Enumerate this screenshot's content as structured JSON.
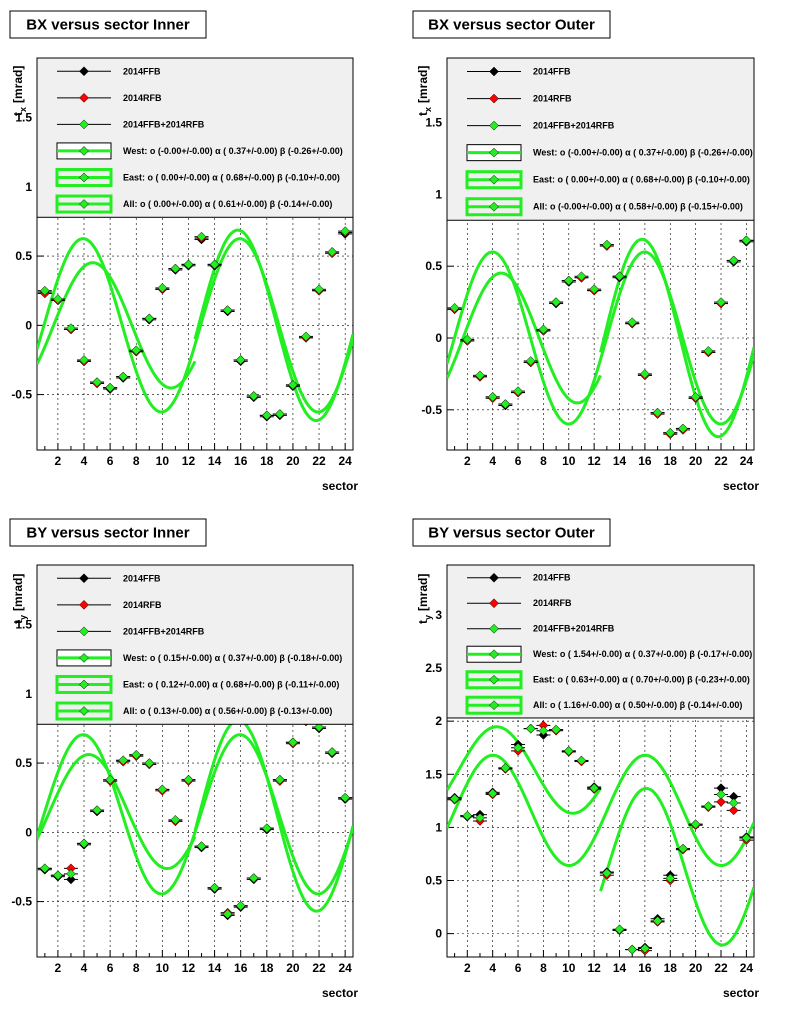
{
  "chart_data": [
    {
      "type": "scatter",
      "title": "BX versus  sector Inner",
      "xlabel": "sector",
      "ylabel": "t",
      "ylabel_sub": "x",
      "ylabel_unit": "[mrad]",
      "xlim": [
        0.4,
        24.6
      ],
      "ylim": [
        -0.9,
        1.93
      ],
      "xticks": [
        2,
        4,
        6,
        8,
        10,
        12,
        14,
        16,
        18,
        20,
        22,
        24
      ],
      "yticks": [
        -0.5,
        0,
        0.5,
        1,
        1.5
      ],
      "ytick_labels": [
        "-0.5",
        "0",
        "0.5",
        "1",
        "1.5"
      ],
      "legend_bottom": 0.78,
      "legend": [
        {
          "label": "2014FFB",
          "kind": "marker",
          "color": "#000000"
        },
        {
          "label": "2014RFB",
          "kind": "marker",
          "color": "#ff0000"
        },
        {
          "label": "2014FFB+2014RFB",
          "kind": "marker",
          "color": "#22ee22"
        },
        {
          "label": "West: o (-0.00+/-0.00) α ( 0.37+/-0.00) β (-0.26+/-0.00)",
          "kind": "fit"
        },
        {
          "label": "East: o ( 0.00+/-0.00) α ( 0.68+/-0.00) β (-0.10+/-0.00)",
          "kind": "fit"
        },
        {
          "label": "All: o ( 0.00+/-0.00) α ( 0.61+/-0.00) β (-0.14+/-0.00)",
          "kind": "fit"
        }
      ],
      "fits": [
        {
          "o": 0.0,
          "a": 0.37,
          "b": -0.26,
          "xmin": 0.4,
          "xmax": 12.5
        },
        {
          "o": 0.0,
          "a": 0.68,
          "b": -0.1,
          "xmin": 12.5,
          "xmax": 24.6
        },
        {
          "o": 0.0,
          "a": 0.61,
          "b": -0.14,
          "xmin": 0.4,
          "xmax": 24.6
        }
      ],
      "sectors": [
        1,
        2,
        3,
        4,
        5,
        6,
        7,
        8,
        9,
        10,
        11,
        12,
        13,
        14,
        15,
        16,
        17,
        18,
        19,
        20,
        21,
        22,
        23,
        24
      ],
      "y_ffb": [
        0.24,
        0.18,
        -0.03,
        -0.26,
        -0.41,
        -0.46,
        -0.38,
        -0.19,
        0.04,
        0.26,
        0.4,
        0.43,
        0.62,
        0.43,
        0.1,
        -0.26,
        -0.52,
        -0.66,
        -0.65,
        -0.44,
        -0.09,
        0.25,
        0.53,
        0.66
      ],
      "y_rfb": [
        0.23,
        0.18,
        -0.03,
        -0.26,
        -0.42,
        -0.45,
        -0.37,
        -0.19,
        0.05,
        0.26,
        0.41,
        0.44,
        0.63,
        0.44,
        0.11,
        -0.25,
        -0.51,
        -0.65,
        -0.64,
        -0.43,
        -0.09,
        0.25,
        0.52,
        0.67
      ],
      "y_all": [
        0.25,
        0.19,
        -0.02,
        -0.25,
        -0.41,
        -0.45,
        -0.37,
        -0.18,
        0.05,
        0.27,
        0.41,
        0.44,
        0.64,
        0.44,
        0.11,
        -0.25,
        -0.51,
        -0.65,
        -0.64,
        -0.43,
        -0.08,
        0.26,
        0.53,
        0.68
      ]
    },
    {
      "type": "scatter",
      "title": "BX versus  sector Outer",
      "xlabel": "sector",
      "ylabel": "t",
      "ylabel_sub": "x",
      "ylabel_unit": "[mrad]",
      "xlim": [
        0.4,
        24.6
      ],
      "ylim": [
        -0.78,
        1.95
      ],
      "xticks": [
        2,
        4,
        6,
        8,
        10,
        12,
        14,
        16,
        18,
        20,
        22,
        24
      ],
      "yticks": [
        -0.5,
        0,
        0.5,
        1,
        1.5
      ],
      "ytick_labels": [
        "-0.5",
        "0",
        "0.5",
        "1",
        "1.5"
      ],
      "legend_bottom": 0.82,
      "legend": [
        {
          "label": "2014FFB",
          "kind": "marker",
          "color": "#000000"
        },
        {
          "label": "2014RFB",
          "kind": "marker",
          "color": "#ff0000"
        },
        {
          "label": "2014FFB+2014RFB",
          "kind": "marker",
          "color": "#22ee22"
        },
        {
          "label": "West: o (-0.00+/-0.00) α ( 0.37+/-0.00) β (-0.26+/-0.00)",
          "kind": "fit"
        },
        {
          "label": "East: o ( 0.00+/-0.00) α ( 0.68+/-0.00) β (-0.10+/-0.00)",
          "kind": "fit"
        },
        {
          "label": "All: o (-0.00+/-0.00) α ( 0.58+/-0.00) β (-0.15+/-0.00)",
          "kind": "fit"
        }
      ],
      "fits": [
        {
          "o": 0.0,
          "a": 0.37,
          "b": -0.26,
          "xmin": 0.4,
          "xmax": 12.5
        },
        {
          "o": 0.0,
          "a": 0.68,
          "b": -0.1,
          "xmin": 12.5,
          "xmax": 24.6
        },
        {
          "o": 0.0,
          "a": 0.58,
          "b": -0.15,
          "xmin": 0.4,
          "xmax": 24.6
        }
      ],
      "sectors": [
        1,
        2,
        3,
        4,
        5,
        6,
        7,
        8,
        9,
        10,
        11,
        12,
        13,
        14,
        15,
        16,
        17,
        18,
        19,
        20,
        21,
        22,
        23,
        24
      ],
      "y_ffb": [
        0.2,
        -0.02,
        -0.27,
        -0.41,
        -0.47,
        -0.38,
        -0.17,
        0.05,
        0.24,
        0.39,
        0.42,
        0.33,
        0.65,
        0.42,
        0.1,
        -0.26,
        -0.52,
        -0.66,
        -0.63,
        -0.42,
        -0.1,
        0.24,
        0.53,
        0.67
      ],
      "y_rfb": [
        0.2,
        -0.02,
        -0.27,
        -0.42,
        -0.46,
        -0.38,
        -0.17,
        0.05,
        0.25,
        0.4,
        0.42,
        0.33,
        0.64,
        0.43,
        0.1,
        -0.26,
        -0.53,
        -0.67,
        -0.64,
        -0.42,
        -0.1,
        0.24,
        0.54,
        0.68
      ],
      "y_all": [
        0.21,
        -0.01,
        -0.26,
        -0.41,
        -0.46,
        -0.37,
        -0.16,
        0.06,
        0.25,
        0.4,
        0.43,
        0.34,
        0.65,
        0.43,
        0.11,
        -0.25,
        -0.52,
        -0.66,
        -0.63,
        -0.41,
        -0.09,
        0.25,
        0.54,
        0.68
      ]
    },
    {
      "type": "scatter",
      "title": "BY versus  sector Inner",
      "xlabel": "sector",
      "ylabel": "t",
      "ylabel_sub": "y",
      "ylabel_unit": "[mrad]",
      "xlim": [
        0.4,
        24.6
      ],
      "ylim": [
        -0.9,
        1.93
      ],
      "xticks": [
        2,
        4,
        6,
        8,
        10,
        12,
        14,
        16,
        18,
        20,
        22,
        24
      ],
      "yticks": [
        -0.5,
        0,
        0.5,
        1,
        1.5
      ],
      "ytick_labels": [
        "-0.5",
        "0",
        "0.5",
        "1",
        "1.5"
      ],
      "legend_bottom": 0.78,
      "legend": [
        {
          "label": "2014FFB",
          "kind": "marker",
          "color": "#000000"
        },
        {
          "label": "2014RFB",
          "kind": "marker",
          "color": "#ff0000"
        },
        {
          "label": "2014FFB+2014RFB",
          "kind": "marker",
          "color": "#22ee22"
        },
        {
          "label": "West: o ( 0.15+/-0.00) α ( 0.37+/-0.00) β (-0.18+/-0.00)",
          "kind": "fit"
        },
        {
          "label": "East: o ( 0.12+/-0.00) α ( 0.68+/-0.00) β (-0.11+/-0.00)",
          "kind": "fit"
        },
        {
          "label": "All: o ( 0.13+/-0.00) α ( 0.56+/-0.00) β (-0.13+/-0.00)",
          "kind": "fit"
        }
      ],
      "fits": [
        {
          "o": 0.15,
          "a": 0.37,
          "b": -0.18,
          "xmin": 0.4,
          "xmax": 12.5
        },
        {
          "o": 0.12,
          "a": 0.68,
          "b": -0.11,
          "xmin": 12.5,
          "xmax": 24.6
        },
        {
          "o": 0.13,
          "a": 0.56,
          "b": -0.13,
          "xmin": 0.4,
          "xmax": 24.6
        }
      ],
      "sectors": [
        1,
        2,
        3,
        4,
        5,
        6,
        7,
        8,
        9,
        10,
        11,
        12,
        13,
        14,
        15,
        16,
        17,
        18,
        19,
        20,
        21,
        22,
        23,
        24
      ],
      "y_ffb": [
        -0.27,
        -0.32,
        -0.34,
        -0.09,
        0.15,
        0.37,
        0.52,
        0.56,
        0.5,
        0.31,
        0.08,
        0.38,
        -0.11,
        -0.41,
        -0.6,
        -0.54,
        -0.34,
        0.02,
        0.38,
        0.65,
        0.81,
        0.75,
        0.57,
        0.24
      ],
      "y_rfb": [
        -0.26,
        -0.31,
        -0.26,
        -0.08,
        0.16,
        0.37,
        0.51,
        0.55,
        0.49,
        0.3,
        0.08,
        0.37,
        -0.1,
        -0.4,
        -0.58,
        -0.53,
        -0.33,
        0.03,
        0.37,
        0.64,
        0.8,
        0.76,
        0.58,
        0.25
      ],
      "y_all": [
        -0.26,
        -0.31,
        -0.3,
        -0.08,
        0.16,
        0.38,
        0.52,
        0.56,
        0.5,
        0.31,
        0.09,
        0.38,
        -0.1,
        -0.4,
        -0.59,
        -0.53,
        -0.33,
        0.03,
        0.38,
        0.65,
        0.81,
        0.76,
        0.58,
        0.25
      ]
    },
    {
      "type": "scatter",
      "title": "BY versus  sector Outer",
      "xlabel": "sector",
      "ylabel": "t",
      "ylabel_sub": "y",
      "ylabel_unit": "[mrad]",
      "xlim": [
        0.4,
        24.6
      ],
      "ylim": [
        -0.22,
        3.47
      ],
      "xticks": [
        2,
        4,
        6,
        8,
        10,
        12,
        14,
        16,
        18,
        20,
        22,
        24
      ],
      "yticks": [
        0,
        0.5,
        1,
        1.5,
        2,
        2.5,
        3
      ],
      "ytick_labels": [
        "0",
        "0.5",
        "1",
        "1.5",
        "2",
        "2.5",
        "3"
      ],
      "legend_bottom": 2.03,
      "legend": [
        {
          "label": "2014FFB",
          "kind": "marker",
          "color": "#000000"
        },
        {
          "label": "2014RFB",
          "kind": "marker",
          "color": "#ff0000"
        },
        {
          "label": "2014FFB+2014RFB",
          "kind": "marker",
          "color": "#22ee22"
        },
        {
          "label": "West: o ( 1.54+/-0.00) α ( 0.37+/-0.00) β (-0.17+/-0.00)",
          "kind": "fit"
        },
        {
          "label": "East: o ( 0.63+/-0.00) α ( 0.70+/-0.00) β (-0.23+/-0.00)",
          "kind": "fit"
        },
        {
          "label": "All: o ( 1.16+/-0.00) α ( 0.50+/-0.00) β (-0.14+/-0.00)",
          "kind": "fit"
        }
      ],
      "fits": [
        {
          "o": 1.54,
          "a": 0.37,
          "b": -0.17,
          "xmin": 0.4,
          "xmax": 12.5
        },
        {
          "o": 0.63,
          "a": 0.7,
          "b": -0.23,
          "xmin": 12.5,
          "xmax": 24.6
        },
        {
          "o": 1.16,
          "a": 0.5,
          "b": -0.14,
          "xmin": 0.4,
          "xmax": 24.6
        }
      ],
      "sectors": [
        1,
        2,
        3,
        4,
        5,
        6,
        7,
        8,
        9,
        10,
        11,
        12,
        13,
        14,
        15,
        16,
        17,
        18,
        19,
        20,
        21,
        22,
        23,
        24
      ],
      "y_ffb": [
        1.28,
        1.1,
        1.12,
        1.33,
        1.56,
        1.78,
        1.93,
        1.87,
        1.92,
        1.72,
        1.63,
        1.38,
        0.58,
        0.04,
        -0.15,
        -0.13,
        0.14,
        0.55,
        0.8,
        1.03,
        1.2,
        1.37,
        1.29,
        0.91
      ],
      "y_rfb": [
        1.26,
        1.11,
        1.06,
        1.31,
        1.55,
        1.72,
        1.93,
        1.96,
        1.91,
        1.71,
        1.62,
        1.36,
        0.55,
        0.03,
        -0.15,
        -0.16,
        0.11,
        0.5,
        0.79,
        1.02,
        1.19,
        1.24,
        1.16,
        0.88
      ],
      "y_all": [
        1.27,
        1.11,
        1.09,
        1.32,
        1.56,
        1.75,
        1.93,
        1.91,
        1.92,
        1.72,
        1.63,
        1.37,
        0.57,
        0.04,
        -0.15,
        -0.14,
        0.12,
        0.52,
        0.8,
        1.03,
        1.2,
        1.31,
        1.23,
        0.9
      ]
    }
  ]
}
